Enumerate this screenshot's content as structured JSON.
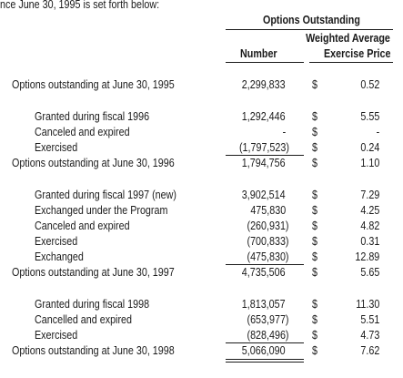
{
  "intro_text": "nce June 30, 1995 is set forth below:",
  "header": {
    "group_title": "Options Outstanding",
    "number_label": "Number",
    "wavg_label_1": "Weighted Average",
    "wavg_label_2": "Exercise Price"
  },
  "currency_symbol": "$",
  "rows": [
    {
      "label": "Options outstanding at June 30, 1995",
      "number": "2,299,833",
      "price": "0.52"
    },
    {
      "label": "Granted during fiscal 1996",
      "number": "1,292,446",
      "price": "5.55"
    },
    {
      "label": "Canceled and expired",
      "number": "-",
      "price": "-"
    },
    {
      "label": "Exercised",
      "number": "(1,797,523)",
      "price": "0.24"
    },
    {
      "label": "Options outstanding at June 30, 1996",
      "number": "1,794,756",
      "price": "1.10"
    },
    {
      "label": "Granted during fiscal 1997 (new)",
      "number": "3,902,514",
      "price": "7.29"
    },
    {
      "label": "Exchanged under the Program",
      "number": "475,830",
      "price": "4.25"
    },
    {
      "label": "Canceled and expired",
      "number": "(260,931)",
      "price": "4.82"
    },
    {
      "label": "Exercised",
      "number": "(700,833)",
      "price": "0.31"
    },
    {
      "label": "Exchanged",
      "number": "(475,830)",
      "price": "12.89"
    },
    {
      "label": "Options outstanding at June 30, 1997",
      "number": "4,735,506",
      "price": "5.65"
    },
    {
      "label": "Granted during fiscal 1998",
      "number": "1,813,057",
      "price": "11.30"
    },
    {
      "label": "Cancelled and expired",
      "number": "(653,977)",
      "price": "5.51"
    },
    {
      "label": "Exercised",
      "number": "(828,496)",
      "price": "4.73"
    },
    {
      "label": "Options outstanding at June 30, 1998",
      "number": "5,066,090",
      "price": "7.62"
    }
  ]
}
